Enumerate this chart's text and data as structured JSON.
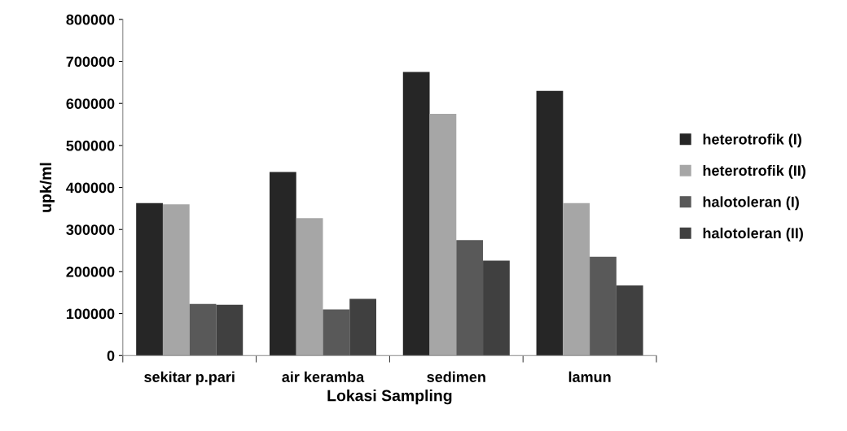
{
  "chart_data": {
    "type": "bar",
    "xlabel": "Lokasi Sampling",
    "ylabel": "upk/ml",
    "categories": [
      "sekitar p.pari",
      "air keramba",
      "sedimen",
      "lamun"
    ],
    "series": [
      {
        "name": "heterotrofik (I)",
        "color": "#262626",
        "values": [
          363000,
          437000,
          675000,
          630000
        ]
      },
      {
        "name": "heterotrofik (II)",
        "color": "#a6a6a6",
        "values": [
          360000,
          327000,
          575000,
          363000
        ]
      },
      {
        "name": "halotoleran (I)",
        "color": "#595959",
        "values": [
          123000,
          110000,
          275000,
          235000
        ]
      },
      {
        "name": "halotoleran (II)",
        "color": "#404040",
        "values": [
          121000,
          135000,
          226000,
          167000
        ]
      }
    ],
    "ylim": [
      0,
      800000
    ],
    "yticks": [
      0,
      100000,
      200000,
      300000,
      400000,
      500000,
      600000,
      700000,
      800000
    ],
    "grid": false,
    "legend": "right"
  }
}
